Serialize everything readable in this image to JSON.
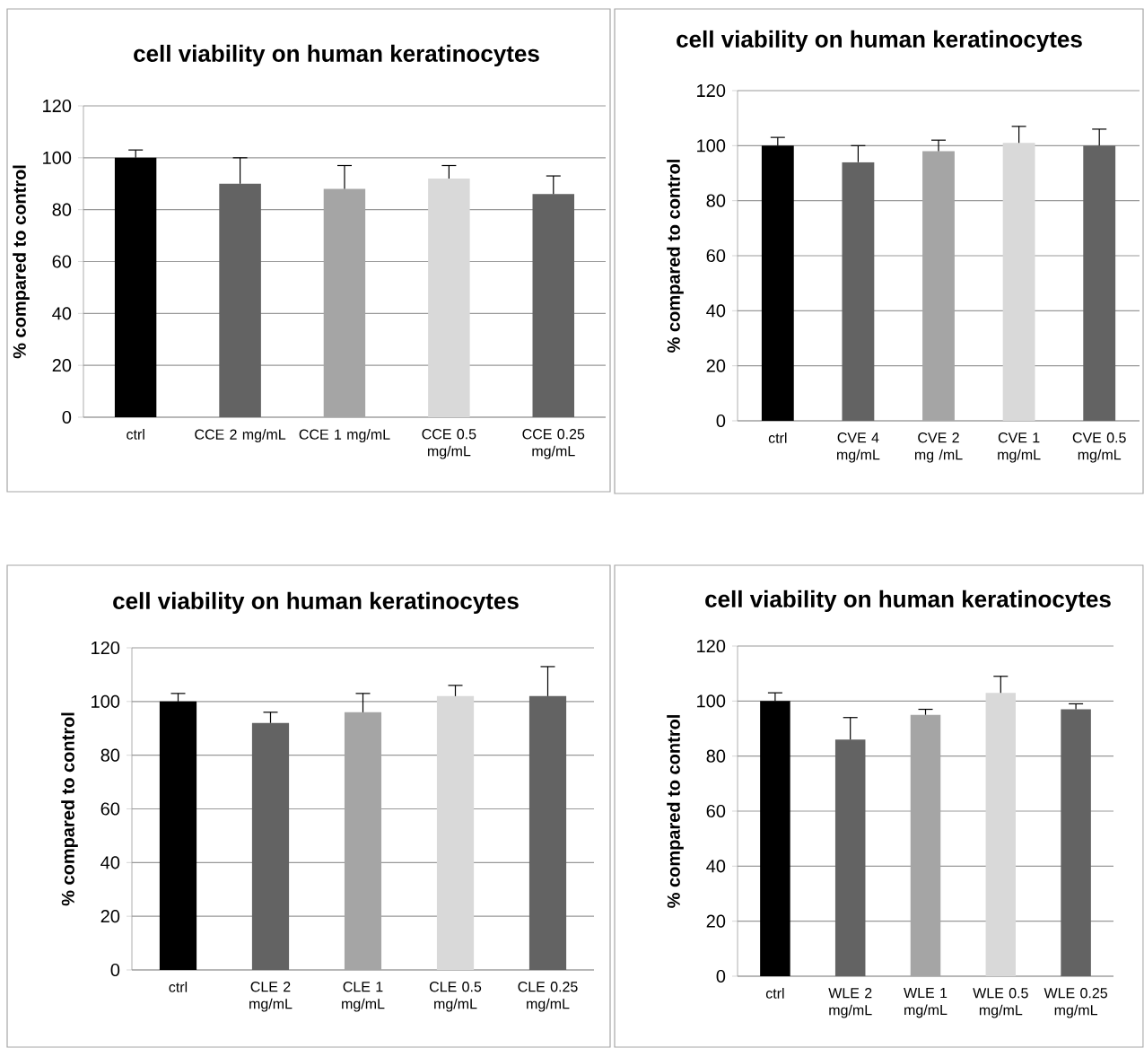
{
  "chart_data": [
    {
      "type": "bar",
      "title": "cell viability on human keratinocytes",
      "ylabel": "% compared to control",
      "categories": [
        "ctrl",
        "CCE 2 mg/mL",
        "CCE 1 mg/mL",
        "CCE 0.5 mg/mL",
        "CCE 0.25 mg/mL"
      ],
      "values": [
        100,
        90,
        88,
        92,
        86
      ],
      "colors": [
        "#000000",
        "#636363",
        "#a5a5a5",
        "#d9d9d9",
        "#636363"
      ],
      "errors": [
        [
          100,
          103
        ],
        [
          90,
          100
        ],
        [
          88,
          97
        ],
        [
          92,
          97
        ],
        [
          86,
          93
        ]
      ],
      "ylim": [
        0,
        120
      ],
      "yticks": [
        0,
        20,
        40,
        60,
        80,
        100,
        120
      ],
      "grid": "y"
    },
    {
      "type": "bar",
      "title": "cell viability on human keratinocytes",
      "ylabel": "% compared to control",
      "categories": [
        "ctrl",
        "CVE 4 mg/mL",
        "CVE 2 mg /mL",
        "CVE 1 mg/mL",
        "CVE 0.5 mg/mL"
      ],
      "values": [
        100,
        94,
        98,
        101,
        100
      ],
      "colors": [
        "#000000",
        "#636363",
        "#a5a5a5",
        "#d9d9d9",
        "#636363"
      ],
      "errors": [
        [
          100,
          103
        ],
        [
          94,
          100
        ],
        [
          98,
          102
        ],
        [
          101,
          107
        ],
        [
          100,
          106
        ]
      ],
      "ylim": [
        0,
        120
      ],
      "yticks": [
        0,
        20,
        40,
        60,
        80,
        100,
        120
      ],
      "grid": "y"
    },
    {
      "type": "bar",
      "title": "cell viability on human keratinocytes",
      "ylabel": "% compared to control",
      "categories": [
        "ctrl",
        "CLE 2 mg/mL",
        "CLE 1 mg/mL",
        "CLE 0.5 mg/mL",
        "CLE 0.25 mg/mL"
      ],
      "values": [
        100,
        92,
        96,
        102,
        102
      ],
      "colors": [
        "#000000",
        "#636363",
        "#a5a5a5",
        "#d9d9d9",
        "#636363"
      ],
      "errors": [
        [
          100,
          103
        ],
        [
          92,
          96
        ],
        [
          96,
          103
        ],
        [
          102,
          106
        ],
        [
          102,
          113
        ]
      ],
      "ylim": [
        0,
        120
      ],
      "yticks": [
        0,
        20,
        40,
        60,
        80,
        100,
        120
      ],
      "grid": "y"
    },
    {
      "type": "bar",
      "title": "cell viability on human keratinocytes",
      "ylabel": "% compared to control",
      "categories": [
        "ctrl",
        "WLE 2 mg/mL",
        "WLE 1 mg/mL",
        "WLE 0.5 mg/mL",
        "WLE 0.25 mg/mL"
      ],
      "values": [
        100,
        86,
        95,
        103,
        97
      ],
      "colors": [
        "#000000",
        "#636363",
        "#a5a5a5",
        "#d9d9d9",
        "#636363"
      ],
      "errors": [
        [
          100,
          103
        ],
        [
          86,
          94
        ],
        [
          95,
          97
        ],
        [
          103,
          109
        ],
        [
          97,
          99
        ]
      ],
      "ylim": [
        0,
        120
      ],
      "yticks": [
        0,
        20,
        40,
        60,
        80,
        100,
        120
      ],
      "grid": "y"
    }
  ]
}
